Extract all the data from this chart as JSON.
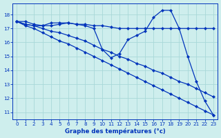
{
  "title": "",
  "xlabel": "Graphe des températures (°c)",
  "ylabel": "",
  "background_color": "#ceeeed",
  "line_color": "#0033bb",
  "grid_color": "#a8d8d8",
  "xlim": [
    -0.5,
    23.5
  ],
  "ylim": [
    10.5,
    18.8
  ],
  "xticks": [
    0,
    1,
    2,
    3,
    4,
    5,
    6,
    7,
    8,
    9,
    10,
    11,
    12,
    13,
    14,
    15,
    16,
    17,
    18,
    19,
    20,
    21,
    22,
    23
  ],
  "yticks": [
    11,
    12,
    13,
    14,
    15,
    16,
    17,
    18
  ],
  "series": [
    {
      "x": [
        0,
        1,
        2,
        3,
        4,
        5,
        6,
        7,
        8,
        9,
        10,
        11,
        12,
        13,
        14,
        15,
        16,
        17,
        18,
        19,
        20,
        21,
        22,
        23
      ],
      "y": [
        17.5,
        17.5,
        17.3,
        17.2,
        17.2,
        17.3,
        17.4,
        17.3,
        17.3,
        17.2,
        17.2,
        17.1,
        17.0,
        17.0,
        17.0,
        17.0,
        17.0,
        17.0,
        17.0,
        17.0,
        17.0,
        17.0,
        17.0,
        17.0
      ]
    },
    {
      "x": [
        0,
        1,
        2,
        3,
        4,
        5,
        6,
        7,
        8,
        9,
        10,
        11,
        12,
        13,
        14,
        15,
        16,
        17,
        18,
        19,
        20,
        21,
        22,
        23
      ],
      "y": [
        17.5,
        17.3,
        17.2,
        17.2,
        17.4,
        17.4,
        17.4,
        17.3,
        17.2,
        17.0,
        15.5,
        14.9,
        15.2,
        16.2,
        16.5,
        16.8,
        17.8,
        18.3,
        18.3,
        17.0,
        15.0,
        13.2,
        11.8,
        10.8
      ]
    },
    {
      "x": [
        0,
        1,
        2,
        3,
        4,
        5,
        6,
        7,
        8,
        9,
        10,
        11,
        12,
        13,
        14,
        15,
        16,
        17,
        18,
        19,
        20,
        21,
        22,
        23
      ],
      "y": [
        17.5,
        17.3,
        17.2,
        17.0,
        16.8,
        16.7,
        16.5,
        16.3,
        16.1,
        15.8,
        15.5,
        15.3,
        15.0,
        14.8,
        14.5,
        14.3,
        14.0,
        13.8,
        13.5,
        13.2,
        13.0,
        12.7,
        12.4,
        12.1
      ]
    },
    {
      "x": [
        0,
        1,
        2,
        3,
        4,
        5,
        6,
        7,
        8,
        9,
        10,
        11,
        12,
        13,
        14,
        15,
        16,
        17,
        18,
        19,
        20,
        21,
        22,
        23
      ],
      "y": [
        17.5,
        17.2,
        17.0,
        16.7,
        16.4,
        16.1,
        15.9,
        15.6,
        15.3,
        15.0,
        14.7,
        14.4,
        14.1,
        13.8,
        13.5,
        13.2,
        12.9,
        12.6,
        12.3,
        12.0,
        11.7,
        11.4,
        11.1,
        10.8
      ]
    }
  ]
}
